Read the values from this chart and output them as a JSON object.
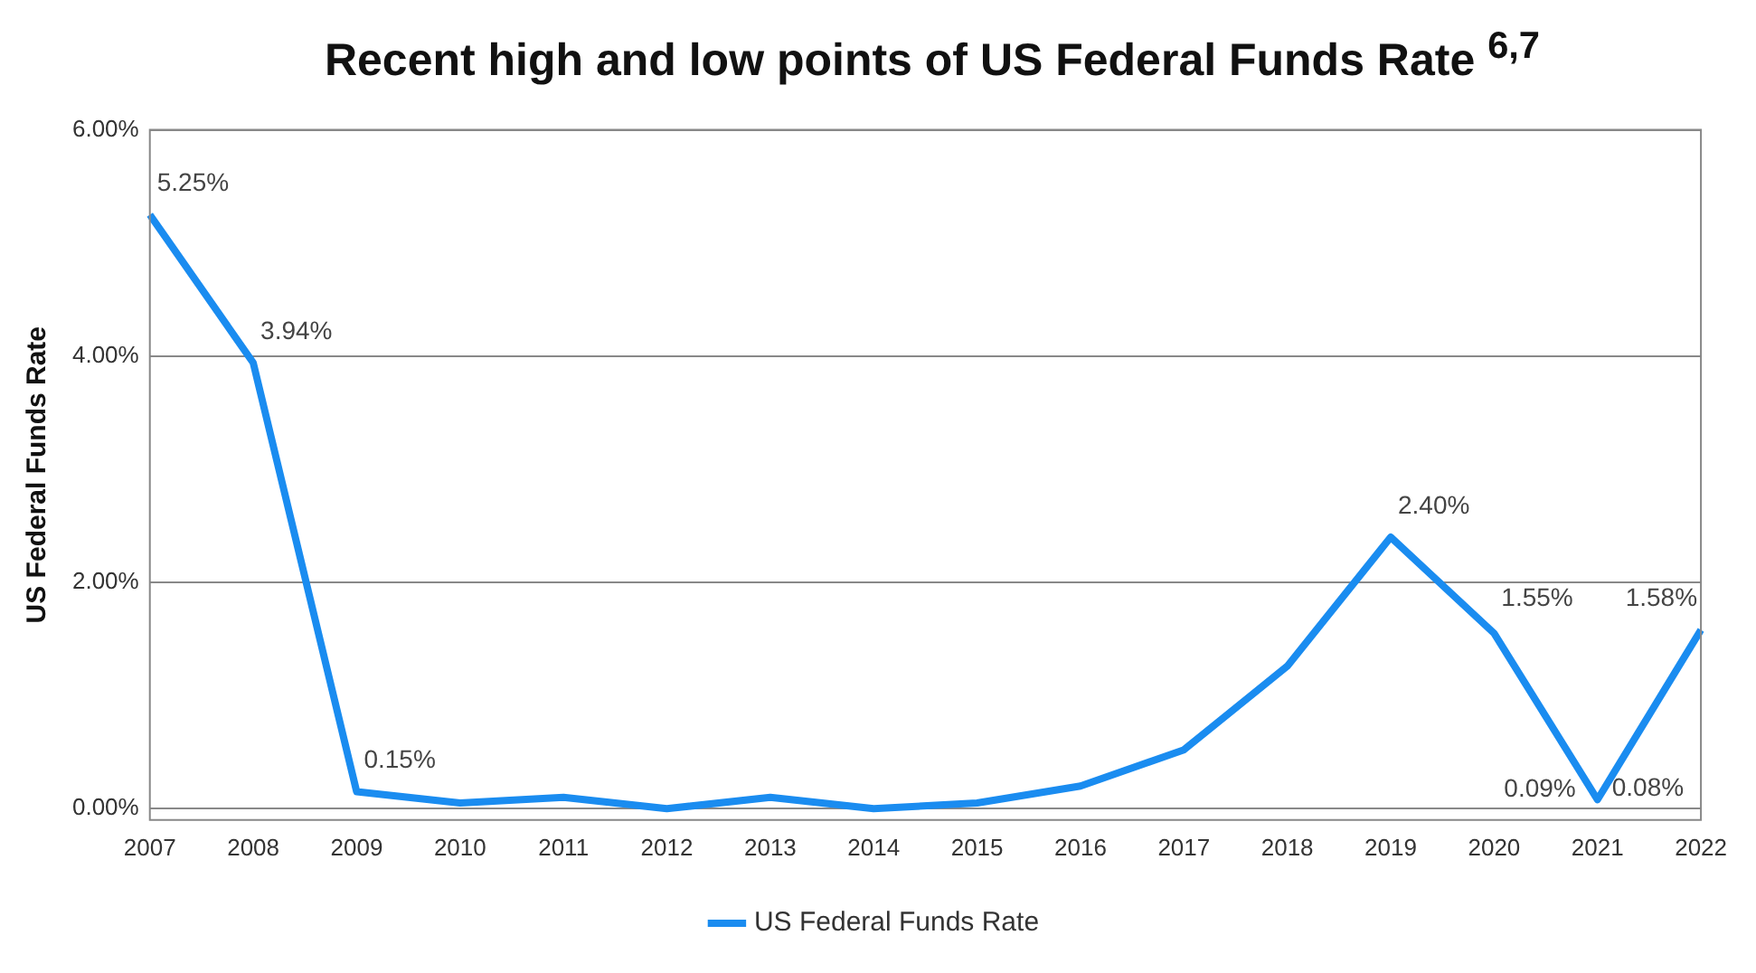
{
  "chart_data": {
    "type": "line",
    "title": "Recent high and low points of US Federal Funds Rate $^{6,7}$",
    "ylabel": "US Federal Funds Rate",
    "categories": [
      "2007",
      "2008",
      "2009",
      "2010",
      "2011",
      "2012",
      "2013",
      "2014",
      "2015",
      "2016",
      "2017",
      "2018",
      "2019",
      "2020",
      "2021",
      "2022"
    ],
    "series": [
      {
        "name": "US Federal Funds Rate",
        "color": "#1a8cf0",
        "values": [
          5.25,
          3.94,
          0.15,
          0.05,
          0.1,
          0,
          0.1,
          0,
          0.05,
          0.2,
          0.52,
          1.26,
          2.4,
          1.55,
          0.08,
          1.58
        ],
        "value_labels": [
          "5.25%",
          "3.94%",
          "0.15%",
          null,
          null,
          null,
          null,
          null,
          null,
          null,
          null,
          null,
          "2.40%",
          "1.55%",
          "0.08%",
          "1.58%"
        ]
      }
    ],
    "annotations": [
      {
        "text": "0.09%",
        "x": "2021",
        "y": 0.09
      }
    ],
    "ylim": [
      -0.1,
      6
    ],
    "yticks": [
      {
        "value": 0,
        "label": "0.00%"
      },
      {
        "value": 2,
        "label": "2.00%"
      },
      {
        "value": 4,
        "label": "4.00%"
      },
      {
        "value": 6,
        "label": "6.00%"
      }
    ],
    "grid": "y",
    "legend": "bottom",
    "marker": "none",
    "line_style": "solid"
  }
}
